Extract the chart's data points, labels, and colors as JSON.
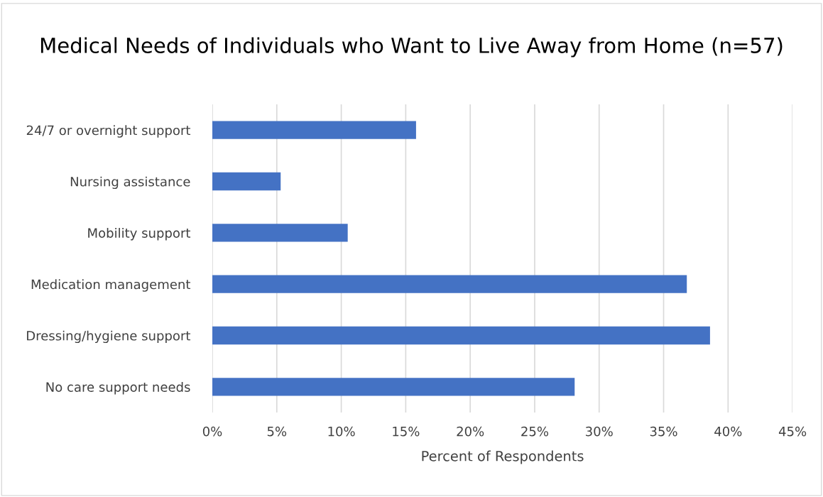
{
  "chart_data": {
    "type": "bar",
    "orientation": "horizontal",
    "title": "Medical Needs of Individuals who Want to Live Away from Home (n=57)",
    "xlabel": "Percent of Respondents",
    "categories": [
      "24/7 or overnight support",
      "Nursing assistance",
      "Mobility support",
      "Medication management",
      "Dressing/hygiene support",
      "No care support needs"
    ],
    "values": [
      15.8,
      5.3,
      10.5,
      36.8,
      38.6,
      28.1
    ],
    "color": "#4472c4",
    "xlim": [
      0,
      45
    ],
    "xticks": [
      {
        "value": 0,
        "label": "0%"
      },
      {
        "value": 5,
        "label": "5%"
      },
      {
        "value": 10,
        "label": "10%"
      },
      {
        "value": 15,
        "label": "15%"
      },
      {
        "value": 20,
        "label": "20%"
      },
      {
        "value": 25,
        "label": "25%"
      },
      {
        "value": 30,
        "label": "30%"
      },
      {
        "value": 35,
        "label": "35%"
      },
      {
        "value": 40,
        "label": "40%"
      },
      {
        "value": 45,
        "label": "45%"
      }
    ],
    "grid": "x"
  }
}
